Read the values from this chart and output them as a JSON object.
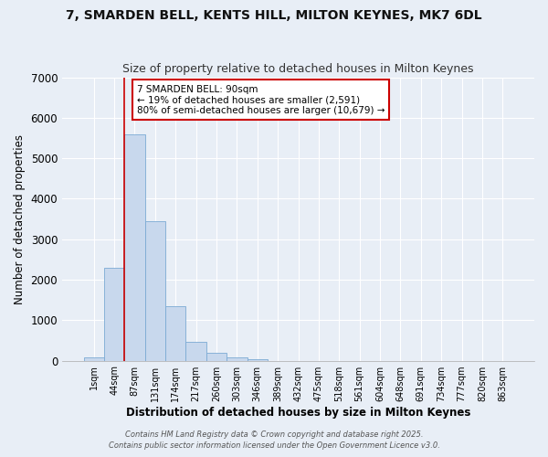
{
  "title": "7, SMARDEN BELL, KENTS HILL, MILTON KEYNES, MK7 6DL",
  "subtitle": "Size of property relative to detached houses in Milton Keynes",
  "xlabel": "Distribution of detached houses by size in Milton Keynes",
  "ylabel": "Number of detached properties",
  "bar_color": "#c8d8ed",
  "bar_edge_color": "#7baad4",
  "bg_color": "#e8eef6",
  "grid_color": "white",
  "categories": [
    "1sqm",
    "44sqm",
    "87sqm",
    "131sqm",
    "174sqm",
    "217sqm",
    "260sqm",
    "303sqm",
    "346sqm",
    "389sqm",
    "432sqm",
    "475sqm",
    "518sqm",
    "561sqm",
    "604sqm",
    "648sqm",
    "691sqm",
    "734sqm",
    "777sqm",
    "820sqm",
    "863sqm"
  ],
  "values": [
    80,
    2300,
    5600,
    3450,
    1350,
    470,
    200,
    90,
    40,
    0,
    0,
    0,
    0,
    0,
    0,
    0,
    0,
    0,
    0,
    0,
    0
  ],
  "bar_width": 1.0,
  "ylim": [
    0,
    7000
  ],
  "yticks": [
    0,
    1000,
    2000,
    3000,
    4000,
    5000,
    6000,
    7000
  ],
  "red_line_x": 1.5,
  "red_line_color": "#cc0000",
  "annotation_text": "7 SMARDEN BELL: 90sqm\n← 19% of detached houses are smaller (2,591)\n80% of semi-detached houses are larger (10,679) →",
  "annotation_box_color": "white",
  "annotation_box_edge": "#cc0000",
  "footer1": "Contains HM Land Registry data © Crown copyright and database right 2025.",
  "footer2": "Contains public sector information licensed under the Open Government Licence v3.0."
}
